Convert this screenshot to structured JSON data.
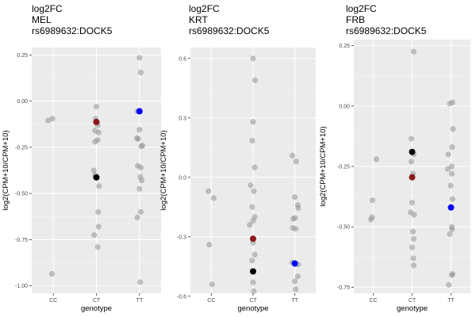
{
  "chart_data": [
    {
      "type": "scatter",
      "title_lines": [
        "log2FC",
        "MEL",
        "rs6989632:DOCK5"
      ],
      "xlabel": "genotype",
      "ylabel": "log2(CPM+10/CPM+10)",
      "categories": [
        "CC",
        "CT",
        "TT"
      ],
      "ylim": [
        -1.04,
        0.29
      ],
      "yticks": [
        0.25,
        0,
        -0.25,
        -0.5,
        -0.75,
        -1
      ],
      "ytick_labels": [
        "0.25",
        "0.00",
        "-0.25",
        "-0.50",
        "-0.75",
        "-1.00"
      ],
      "grid": true,
      "points": [
        {
          "g": "CC",
          "off": -0.12,
          "y": -0.105
        },
        {
          "g": "CC",
          "off": -0.02,
          "y": -0.095
        },
        {
          "g": "CC",
          "off": -0.03,
          "y": -0.935
        },
        {
          "g": "CT",
          "off": 0.0,
          "y": -0.03
        },
        {
          "g": "CT",
          "off": -0.02,
          "y": -0.095
        },
        {
          "g": "CT",
          "off": 0.03,
          "y": -0.13
        },
        {
          "g": "CT",
          "off": -0.03,
          "y": -0.16
        },
        {
          "g": "CT",
          "off": 0.05,
          "y": -0.17
        },
        {
          "g": "CT",
          "off": 0.03,
          "y": -0.21
        },
        {
          "g": "CT",
          "off": -0.03,
          "y": -0.22
        },
        {
          "g": "CT",
          "off": -0.06,
          "y": -0.375
        },
        {
          "g": "CT",
          "off": -0.03,
          "y": -0.4
        },
        {
          "g": "CT",
          "off": 0.06,
          "y": -0.46
        },
        {
          "g": "CT",
          "off": 0.04,
          "y": -0.6
        },
        {
          "g": "CT",
          "off": 0.05,
          "y": -0.68
        },
        {
          "g": "CT",
          "off": -0.05,
          "y": -0.725
        },
        {
          "g": "CT",
          "off": 0.03,
          "y": -0.79
        },
        {
          "g": "TT",
          "off": 0.0,
          "y": 0.235
        },
        {
          "g": "TT",
          "off": 0.03,
          "y": 0.155
        },
        {
          "g": "TT",
          "off": -0.05,
          "y": -0.055
        },
        {
          "g": "TT",
          "off": 0.0,
          "y": -0.155
        },
        {
          "g": "TT",
          "off": -0.06,
          "y": -0.2
        },
        {
          "g": "TT",
          "off": -0.03,
          "y": -0.205
        },
        {
          "g": "TT",
          "off": 0.07,
          "y": -0.24
        },
        {
          "g": "TT",
          "off": 0.04,
          "y": -0.245
        },
        {
          "g": "TT",
          "off": -0.04,
          "y": -0.35
        },
        {
          "g": "TT",
          "off": 0.03,
          "y": -0.36
        },
        {
          "g": "TT",
          "off": 0.02,
          "y": -0.41
        },
        {
          "g": "TT",
          "off": 0.05,
          "y": -0.43
        },
        {
          "g": "TT",
          "off": 0.0,
          "y": -0.475
        },
        {
          "g": "TT",
          "off": 0.03,
          "y": -0.6
        },
        {
          "g": "TT",
          "off": -0.05,
          "y": -0.63
        },
        {
          "g": "TT",
          "off": 0.02,
          "y": -0.98
        }
      ],
      "highlights": [
        {
          "g": "CT",
          "off": 0.0,
          "y": -0.113,
          "color": "#8b1a1a"
        },
        {
          "g": "CT",
          "off": 0.0,
          "y": -0.413,
          "color": "#000000"
        },
        {
          "g": "TT",
          "off": 0.0,
          "y": -0.055,
          "color": "#0000ff"
        }
      ]
    },
    {
      "type": "scatter",
      "title_lines": [
        "log2FC",
        "KRT",
        "rs6989632:DOCK5"
      ],
      "xlabel": "genotype",
      "ylabel": "log2(CPM+10/CPM+10)",
      "categories": [
        "CC",
        "CT",
        "TT"
      ],
      "ylim": [
        -0.585,
        0.655
      ],
      "yticks": [
        0.6,
        0.3,
        0,
        -0.3,
        -0.6
      ],
      "ytick_labels": [
        "0.6",
        "0.3",
        "0.0",
        "-0.3",
        "-0.6"
      ],
      "grid": true,
      "points": [
        {
          "g": "CC",
          "off": -0.07,
          "y": -0.07
        },
        {
          "g": "CC",
          "off": 0.06,
          "y": -0.105
        },
        {
          "g": "CC",
          "off": -0.05,
          "y": -0.34
        },
        {
          "g": "CC",
          "off": 0.02,
          "y": -0.54
        },
        {
          "g": "CT",
          "off": 0.0,
          "y": 0.6
        },
        {
          "g": "CT",
          "off": 0.05,
          "y": 0.49
        },
        {
          "g": "CT",
          "off": 0.0,
          "y": 0.28
        },
        {
          "g": "CT",
          "off": -0.02,
          "y": 0.185
        },
        {
          "g": "CT",
          "off": 0.04,
          "y": 0.05
        },
        {
          "g": "CT",
          "off": -0.06,
          "y": -0.04
        },
        {
          "g": "CT",
          "off": 0.02,
          "y": -0.07
        },
        {
          "g": "CT",
          "off": -0.02,
          "y": -0.15
        },
        {
          "g": "CT",
          "off": 0.04,
          "y": -0.2
        },
        {
          "g": "CT",
          "off": 0.0,
          "y": -0.22
        },
        {
          "g": "CT",
          "off": -0.08,
          "y": -0.24
        },
        {
          "g": "CT",
          "off": 0.0,
          "y": -0.33
        },
        {
          "g": "CT",
          "off": 0.04,
          "y": -0.39
        },
        {
          "g": "CT",
          "off": -0.02,
          "y": -0.42
        },
        {
          "g": "CT",
          "off": 0.0,
          "y": -0.53
        },
        {
          "g": "CT",
          "off": 0.02,
          "y": -0.575
        },
        {
          "g": "TT",
          "off": -0.06,
          "y": 0.11
        },
        {
          "g": "TT",
          "off": 0.03,
          "y": 0.08
        },
        {
          "g": "TT",
          "off": 0.0,
          "y": -0.1
        },
        {
          "g": "TT",
          "off": 0.07,
          "y": -0.14
        },
        {
          "g": "TT",
          "off": 0.08,
          "y": -0.155
        },
        {
          "g": "TT",
          "off": -0.04,
          "y": -0.21
        },
        {
          "g": "TT",
          "off": 0.01,
          "y": -0.205
        },
        {
          "g": "TT",
          "off": -0.05,
          "y": -0.255
        },
        {
          "g": "TT",
          "off": 0.02,
          "y": -0.26
        },
        {
          "g": "TT",
          "off": -0.06,
          "y": -0.43
        },
        {
          "g": "TT",
          "off": 0.08,
          "y": -0.44
        },
        {
          "g": "TT",
          "off": 0.07,
          "y": -0.5
        },
        {
          "g": "TT",
          "off": 0.0,
          "y": -0.525
        },
        {
          "g": "TT",
          "off": 0.02,
          "y": -0.565
        }
      ],
      "highlights": [
        {
          "g": "CT",
          "off": 0.0,
          "y": -0.31,
          "color": "#8b1a1a"
        },
        {
          "g": "CT",
          "off": 0.0,
          "y": -0.475,
          "color": "#000000"
        },
        {
          "g": "TT",
          "off": 0.0,
          "y": -0.435,
          "color": "#0000ff"
        }
      ]
    },
    {
      "type": "scatter",
      "title_lines": [
        "log2FC",
        "FRB",
        "rs6989632:DOCK5"
      ],
      "xlabel": "genotype",
      "ylabel": "log2(CPM+10/CPM+10)",
      "categories": [
        "CC",
        "CT",
        "TT"
      ],
      "ylim": [
        -0.775,
        0.275
      ],
      "yticks": [
        0.25,
        0,
        -0.25,
        -0.5,
        -0.75
      ],
      "ytick_labels": [
        "0.25",
        "0.00",
        "-0.25",
        "-0.50",
        "-0.75"
      ],
      "grid": true,
      "points": [
        {
          "g": "CC",
          "off": 0.08,
          "y": -0.22
        },
        {
          "g": "CC",
          "off": -0.02,
          "y": -0.39
        },
        {
          "g": "CC",
          "off": -0.06,
          "y": -0.47
        },
        {
          "g": "CC",
          "off": -0.03,
          "y": -0.46
        },
        {
          "g": "CT",
          "off": 0.04,
          "y": 0.225
        },
        {
          "g": "CT",
          "off": -0.02,
          "y": -0.135
        },
        {
          "g": "CT",
          "off": 0.04,
          "y": -0.2
        },
        {
          "g": "CT",
          "off": -0.02,
          "y": -0.23
        },
        {
          "g": "CT",
          "off": 0.02,
          "y": -0.28
        },
        {
          "g": "CT",
          "off": 0.0,
          "y": -0.4
        },
        {
          "g": "CT",
          "off": -0.04,
          "y": -0.44
        },
        {
          "g": "CT",
          "off": 0.05,
          "y": -0.45
        },
        {
          "g": "CT",
          "off": 0.02,
          "y": -0.52
        },
        {
          "g": "CT",
          "off": 0.04,
          "y": -0.55
        },
        {
          "g": "CT",
          "off": 0.0,
          "y": -0.585
        },
        {
          "g": "CT",
          "off": 0.03,
          "y": -0.63
        },
        {
          "g": "CT",
          "off": 0.04,
          "y": -0.66
        },
        {
          "g": "TT",
          "off": -0.03,
          "y": 0.01
        },
        {
          "g": "TT",
          "off": 0.04,
          "y": 0.015
        },
        {
          "g": "TT",
          "off": 0.05,
          "y": -0.095
        },
        {
          "g": "TT",
          "off": 0.03,
          "y": -0.17
        },
        {
          "g": "TT",
          "off": -0.07,
          "y": -0.2
        },
        {
          "g": "TT",
          "off": 0.02,
          "y": -0.25
        },
        {
          "g": "TT",
          "off": 0.02,
          "y": -0.28
        },
        {
          "g": "TT",
          "off": -0.08,
          "y": -0.26
        },
        {
          "g": "TT",
          "off": -0.01,
          "y": -0.33
        },
        {
          "g": "TT",
          "off": 0.04,
          "y": -0.385
        },
        {
          "g": "TT",
          "off": 0.02,
          "y": -0.5
        },
        {
          "g": "TT",
          "off": 0.03,
          "y": -0.51
        },
        {
          "g": "TT",
          "off": -0.03,
          "y": -0.53
        },
        {
          "g": "TT",
          "off": 0.04,
          "y": -0.695
        },
        {
          "g": "TT",
          "off": 0.02,
          "y": -0.7
        },
        {
          "g": "TT",
          "off": -0.06,
          "y": -0.74
        }
      ],
      "highlights": [
        {
          "g": "CT",
          "off": 0.0,
          "y": -0.295,
          "color": "#8b1a1a"
        },
        {
          "g": "CT",
          "off": 0.0,
          "y": -0.19,
          "color": "#000000"
        },
        {
          "g": "TT",
          "off": 0.0,
          "y": -0.42,
          "color": "#0000ff"
        }
      ]
    }
  ]
}
